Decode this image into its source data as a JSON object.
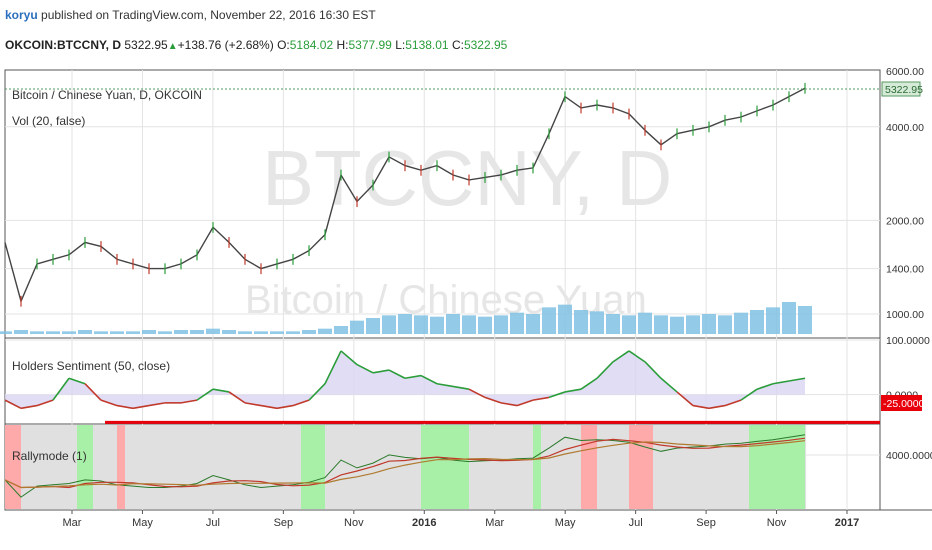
{
  "header": {
    "user": "koryu",
    "published": "published on TradingView.com, November 22, 2016 16:30 EST",
    "symbol": "OKCOIN:BTCCNY, D",
    "last": "5322.95",
    "change": "+138.76 (+2.68%)",
    "open_label": "O:",
    "open": "5184.02",
    "high_label": "H:",
    "high": "5377.99",
    "low_label": "L:",
    "low": "5138.01",
    "close_label": "C:",
    "close": "5322.95"
  },
  "watermark": {
    "big": "BTCCNY, D",
    "small": "Bitcoin / Chinese Yuan"
  },
  "colors": {
    "up": "#2a9d3a",
    "down": "#c0392b",
    "accent_red": "#e8000b",
    "volume": "#7fc1e3",
    "grid": "#e3e3e3"
  },
  "chart_data": [
    {
      "type": "line",
      "panel": "price",
      "title": "Bitcoin / Chinese Yuan, D, OKCOIN",
      "subtitle": "Vol (20, false)",
      "scale": "log",
      "x_ticks": [
        "Mar",
        "May",
        "Jul",
        "Sep",
        "Nov",
        "2016",
        "Mar",
        "May",
        "Jul",
        "Sep",
        "Nov",
        "2017"
      ],
      "y_ticks": [
        "1000.00",
        "1400.00",
        "2000.00",
        "4000.00"
      ],
      "y_top_partial": "6000.00",
      "last_price_label": "5322.95",
      "ylim": [
        850,
        6000
      ],
      "x": [
        0,
        0.02,
        0.04,
        0.06,
        0.08,
        0.1,
        0.12,
        0.14,
        0.16,
        0.18,
        0.2,
        0.22,
        0.24,
        0.26,
        0.28,
        0.3,
        0.32,
        0.34,
        0.36,
        0.38,
        0.4,
        0.42,
        0.44,
        0.46,
        0.48,
        0.5,
        0.52,
        0.54,
        0.56,
        0.58,
        0.6,
        0.62,
        0.64,
        0.66,
        0.68,
        0.7,
        0.72,
        0.74,
        0.76,
        0.78,
        0.8,
        0.82,
        0.84,
        0.86,
        0.88,
        0.9,
        0.92,
        0.94,
        0.96,
        0.98,
        1.0
      ],
      "series": [
        {
          "values": [
            1700,
            1100,
            1450,
            1500,
            1550,
            1700,
            1650,
            1500,
            1450,
            1400,
            1400,
            1450,
            1550,
            1900,
            1700,
            1500,
            1400,
            1450,
            1500,
            1600,
            1800,
            2800,
            2300,
            2600,
            3200,
            3000,
            2900,
            3000,
            2800,
            2700,
            2750,
            2800,
            2900,
            2950,
            3800,
            5000,
            4600,
            4700,
            4600,
            4400,
            3900,
            3500,
            3800,
            3900,
            4000,
            4200,
            4300,
            4500,
            4700,
            5000,
            5322
          ]
        }
      ]
    },
    {
      "type": "bar",
      "panel": "volume",
      "series": [
        {
          "values": [
            2,
            3,
            2,
            2,
            2,
            3,
            2,
            2,
            2,
            3,
            2,
            3,
            3,
            4,
            3,
            2,
            2,
            2,
            2,
            3,
            4,
            6,
            10,
            12,
            14,
            15,
            14,
            13,
            15,
            14,
            13,
            14,
            16,
            15,
            20,
            22,
            18,
            17,
            15,
            14,
            16,
            14,
            13,
            14,
            15,
            14,
            16,
            18,
            20,
            24,
            21
          ]
        }
      ]
    },
    {
      "type": "area",
      "panel": "sentiment",
      "title": "Holders Sentiment (50, close)",
      "y_ticks": [
        "100.0000",
        "0.0000"
      ],
      "threshold_label": "-25.0000",
      "threshold": -25,
      "ylim": [
        -50,
        100
      ],
      "series": [
        {
          "values": [
            -10,
            -25,
            -20,
            -10,
            30,
            20,
            -10,
            -20,
            -25,
            -20,
            -15,
            -15,
            -10,
            10,
            5,
            -15,
            -20,
            -25,
            -20,
            -10,
            20,
            80,
            55,
            40,
            45,
            30,
            35,
            20,
            15,
            10,
            -5,
            -15,
            -20,
            -10,
            -5,
            5,
            10,
            30,
            60,
            80,
            60,
            30,
            5,
            -20,
            -25,
            -20,
            -10,
            10,
            20,
            25,
            30
          ]
        }
      ]
    },
    {
      "type": "line",
      "panel": "rallymode",
      "title": "Rallymode (1)",
      "y_ticks": [
        "4000.0000"
      ],
      "highlight_bands": [
        {
          "from": 0.0,
          "to": 0.02,
          "color": "#ffaaaa"
        },
        {
          "from": 0.09,
          "to": 0.11,
          "color": "#a8f0a8"
        },
        {
          "from": 0.14,
          "to": 0.15,
          "color": "#ffaaaa"
        },
        {
          "from": 0.37,
          "to": 0.4,
          "color": "#a8f0a8"
        },
        {
          "from": 0.52,
          "to": 0.58,
          "color": "#a8f0a8"
        },
        {
          "from": 0.66,
          "to": 0.67,
          "color": "#a8f0a8"
        },
        {
          "from": 0.72,
          "to": 0.74,
          "color": "#ffaaaa"
        },
        {
          "from": 0.78,
          "to": 0.81,
          "color": "#ffaaaa"
        },
        {
          "from": 0.93,
          "to": 1.0,
          "color": "#a8f0a8"
        }
      ]
    }
  ]
}
